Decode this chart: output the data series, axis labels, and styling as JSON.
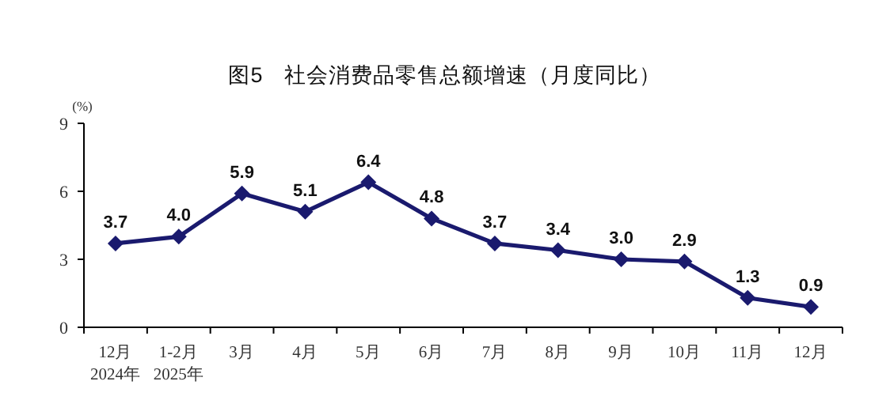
{
  "chart_data": {
    "type": "line",
    "title": "图5　社会消费品零售总额增速（月度同比）",
    "ylabel": "(%)",
    "categories": [
      "12月\n2024年",
      "1-2月\n2025年",
      "3月",
      "4月",
      "5月",
      "6月",
      "7月",
      "8月",
      "9月",
      "10月",
      "11月",
      "12月"
    ],
    "series": [
      {
        "color": "#1a1a6e",
        "values": [
          3.7,
          4.0,
          5.9,
          5.1,
          6.4,
          4.8,
          3.7,
          3.4,
          3.0,
          2.9,
          1.3,
          0.9
        ],
        "value_labels": [
          "3.7",
          "4.0",
          "5.9",
          "5.1",
          "6.4",
          "4.8",
          "3.7",
          "3.4",
          "3.0",
          "2.9",
          "1.3",
          "0.9"
        ]
      }
    ],
    "ylim": [
      0,
      9
    ],
    "yticks": [
      0,
      3,
      6,
      9
    ],
    "marker": "diamond",
    "line_style": "solid",
    "grid": false
  }
}
